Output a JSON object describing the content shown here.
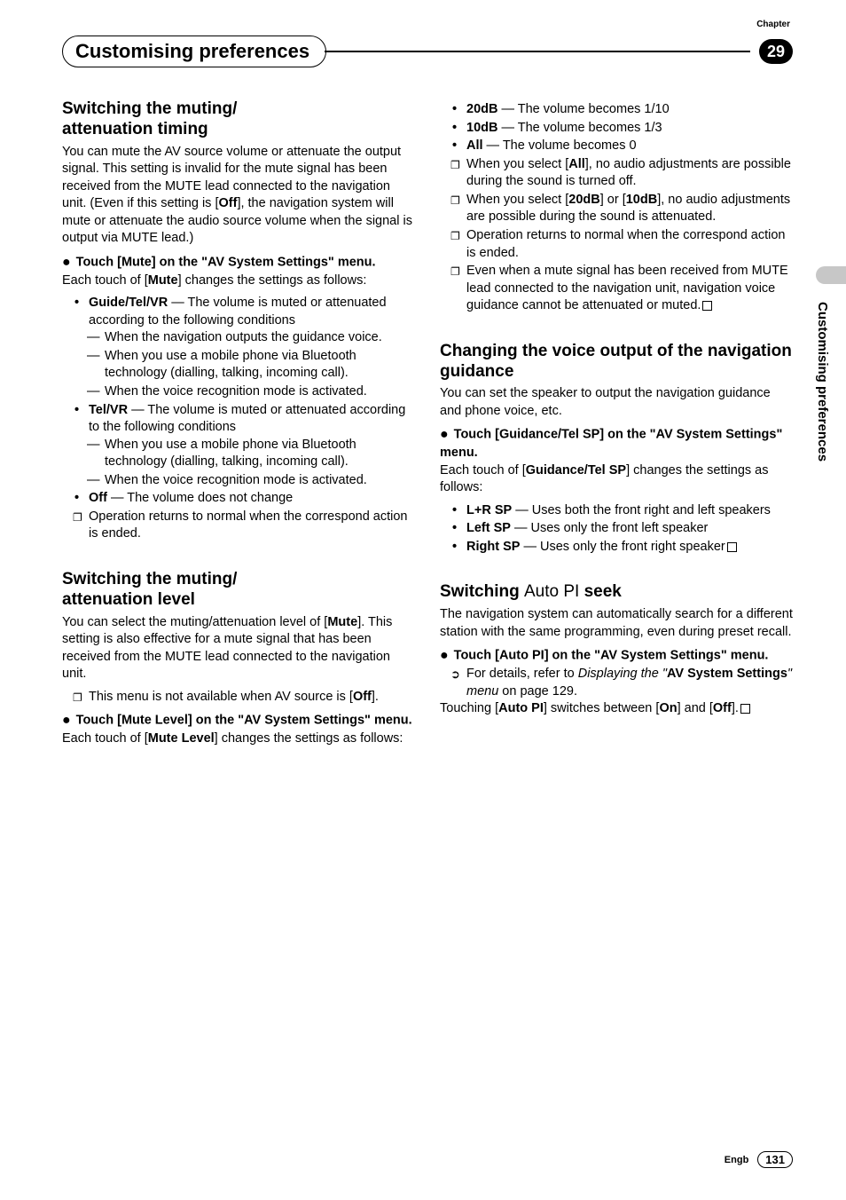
{
  "chapter_label": "Chapter",
  "chapter_number": "29",
  "page_title": "Customising preferences",
  "side_label": "Customising preferences",
  "footer": {
    "lang": "Engb",
    "page": "131"
  },
  "left": {
    "sec1": {
      "heading": "Switching the muting/\nattenuation timing",
      "p1a": "You can mute the AV source volume or attenuate the output signal. This setting is invalid for the mute signal has been received from the MUTE lead connected to the navigation unit. (Even if this setting is [",
      "p1b": "Off",
      "p1c": "], the navigation system will mute or attenuate the audio source volume when the signal is output via MUTE lead.)",
      "step": "Touch [Mute] on the \"AV System Settings\" menu.",
      "p2a": "Each touch of [",
      "p2b": "Mute",
      "p2c": "] changes the settings as follows:",
      "b1": {
        "t": "Guide/Tel/VR",
        "d": " — The volume is muted or attenuated according to the following conditions",
        "s1": "When the navigation outputs the guidance voice.",
        "s2": "When you use a mobile phone via Bluetooth technology (dialling, talking, incoming call).",
        "s3": "When the voice recognition mode is activated."
      },
      "b2": {
        "t": "Tel/VR",
        "d": " — The volume is muted or attenuated according to the following conditions",
        "s1": "When you use a mobile phone via Bluetooth technology (dialling, talking, incoming call).",
        "s2": "When the voice recognition mode is activated."
      },
      "b3": {
        "t": "Off",
        "d": " — The volume does not change"
      },
      "n1": "Operation returns to normal when the correspond action is ended."
    },
    "sec2": {
      "heading": "Switching the muting/\nattenuation level",
      "p1a": "You can select the muting/attenuation level of [",
      "p1b": "Mute",
      "p1c": "]. This setting is also effective for a mute signal that has been received from the MUTE lead connected to the navigation unit.",
      "n1a": "This menu is not available when AV source is [",
      "n1b": "Off",
      "n1c": "].",
      "step": "Touch [Mute Level] on the \"AV System Settings\" menu.",
      "p2a": "Each touch of [",
      "p2b": "Mute Level",
      "p2c": "] changes the settings as follows:"
    }
  },
  "right": {
    "sec1": {
      "b1": {
        "t": "20dB",
        "d": " — The volume becomes 1/10"
      },
      "b2": {
        "t": "10dB",
        "d": " — The volume becomes 1/3"
      },
      "b3": {
        "t": "All",
        "d": " — The volume becomes 0"
      },
      "n1a": "When you select [",
      "n1b": "All",
      "n1c": "], no audio adjustments are possible during the sound is turned off.",
      "n2a": "When you select [",
      "n2b": "20dB",
      "n2c": "] or [",
      "n2d": "10dB",
      "n2e": "], no audio adjustments are possible during the sound is attenuated.",
      "n3": "Operation returns to normal when the correspond action is ended.",
      "n4": "Even when a mute signal has been received from MUTE lead connected to the navigation unit, navigation voice guidance cannot be attenuated or muted."
    },
    "sec2": {
      "heading": "Changing the voice output of the navigation guidance",
      "p1": "You can set the speaker to output the navigation guidance and phone voice, etc.",
      "step": "Touch [Guidance/Tel SP] on the \"AV System Settings\" menu.",
      "p2a": "Each touch of [",
      "p2b": "Guidance/Tel SP",
      "p2c": "] changes the settings as follows:",
      "b1": {
        "t": "L+R SP",
        "d": " — Uses both the front right and left speakers"
      },
      "b2": {
        "t": "Left SP",
        "d": " — Uses only the front left speaker"
      },
      "b3": {
        "t": "Right SP",
        "d": " — Uses only the front right speaker"
      }
    },
    "sec3": {
      "heading_a": "Switching ",
      "heading_b": "Auto PI",
      "heading_c": " seek",
      "p1": "The navigation system can automatically search for a different station with the same programming, even during preset recall.",
      "step": "Touch [Auto PI] on the \"AV System Settings\" menu.",
      "r1a": "For details, refer to ",
      "r1b": "Displaying the \"",
      "r1c": "AV System Settings",
      "r1d": "\" menu",
      "r1e": " on page 129.",
      "p2a": "Touching [",
      "p2b": "Auto PI",
      "p2c": "] switches between [",
      "p2d": "On",
      "p2e": "] and [",
      "p2f": "Off",
      "p2g": "]."
    }
  }
}
